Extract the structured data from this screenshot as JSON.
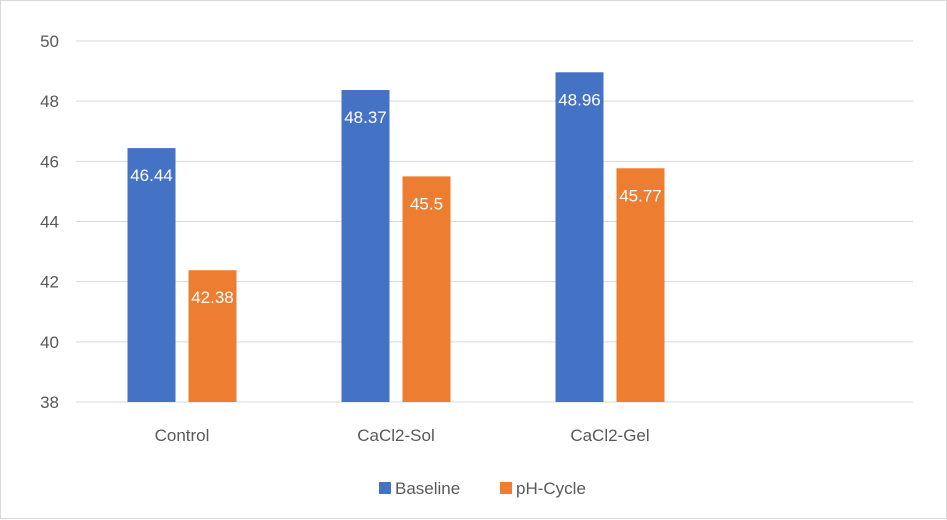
{
  "chart_data": {
    "type": "bar",
    "categories": [
      "Control",
      "CaCl2-Sol",
      "CaCl2-Gel"
    ],
    "series": [
      {
        "name": "Baseline",
        "values": [
          46.44,
          48.37,
          48.96
        ],
        "labels": [
          "46.44",
          "48.37",
          "48.96"
        ],
        "color": "#4472C4"
      },
      {
        "name": "pH-Cycle",
        "values": [
          42.38,
          45.5,
          45.77
        ],
        "labels": [
          "42.38",
          "45.5",
          "45.77"
        ],
        "color": "#ED7D31"
      }
    ],
    "yticks": [
      "38",
      "40",
      "42",
      "44",
      "46",
      "48",
      "50"
    ],
    "ylim": [
      38,
      50
    ],
    "grid": true,
    "legend_position": "bottom",
    "title": "",
    "xlabel": "",
    "ylabel": ""
  }
}
